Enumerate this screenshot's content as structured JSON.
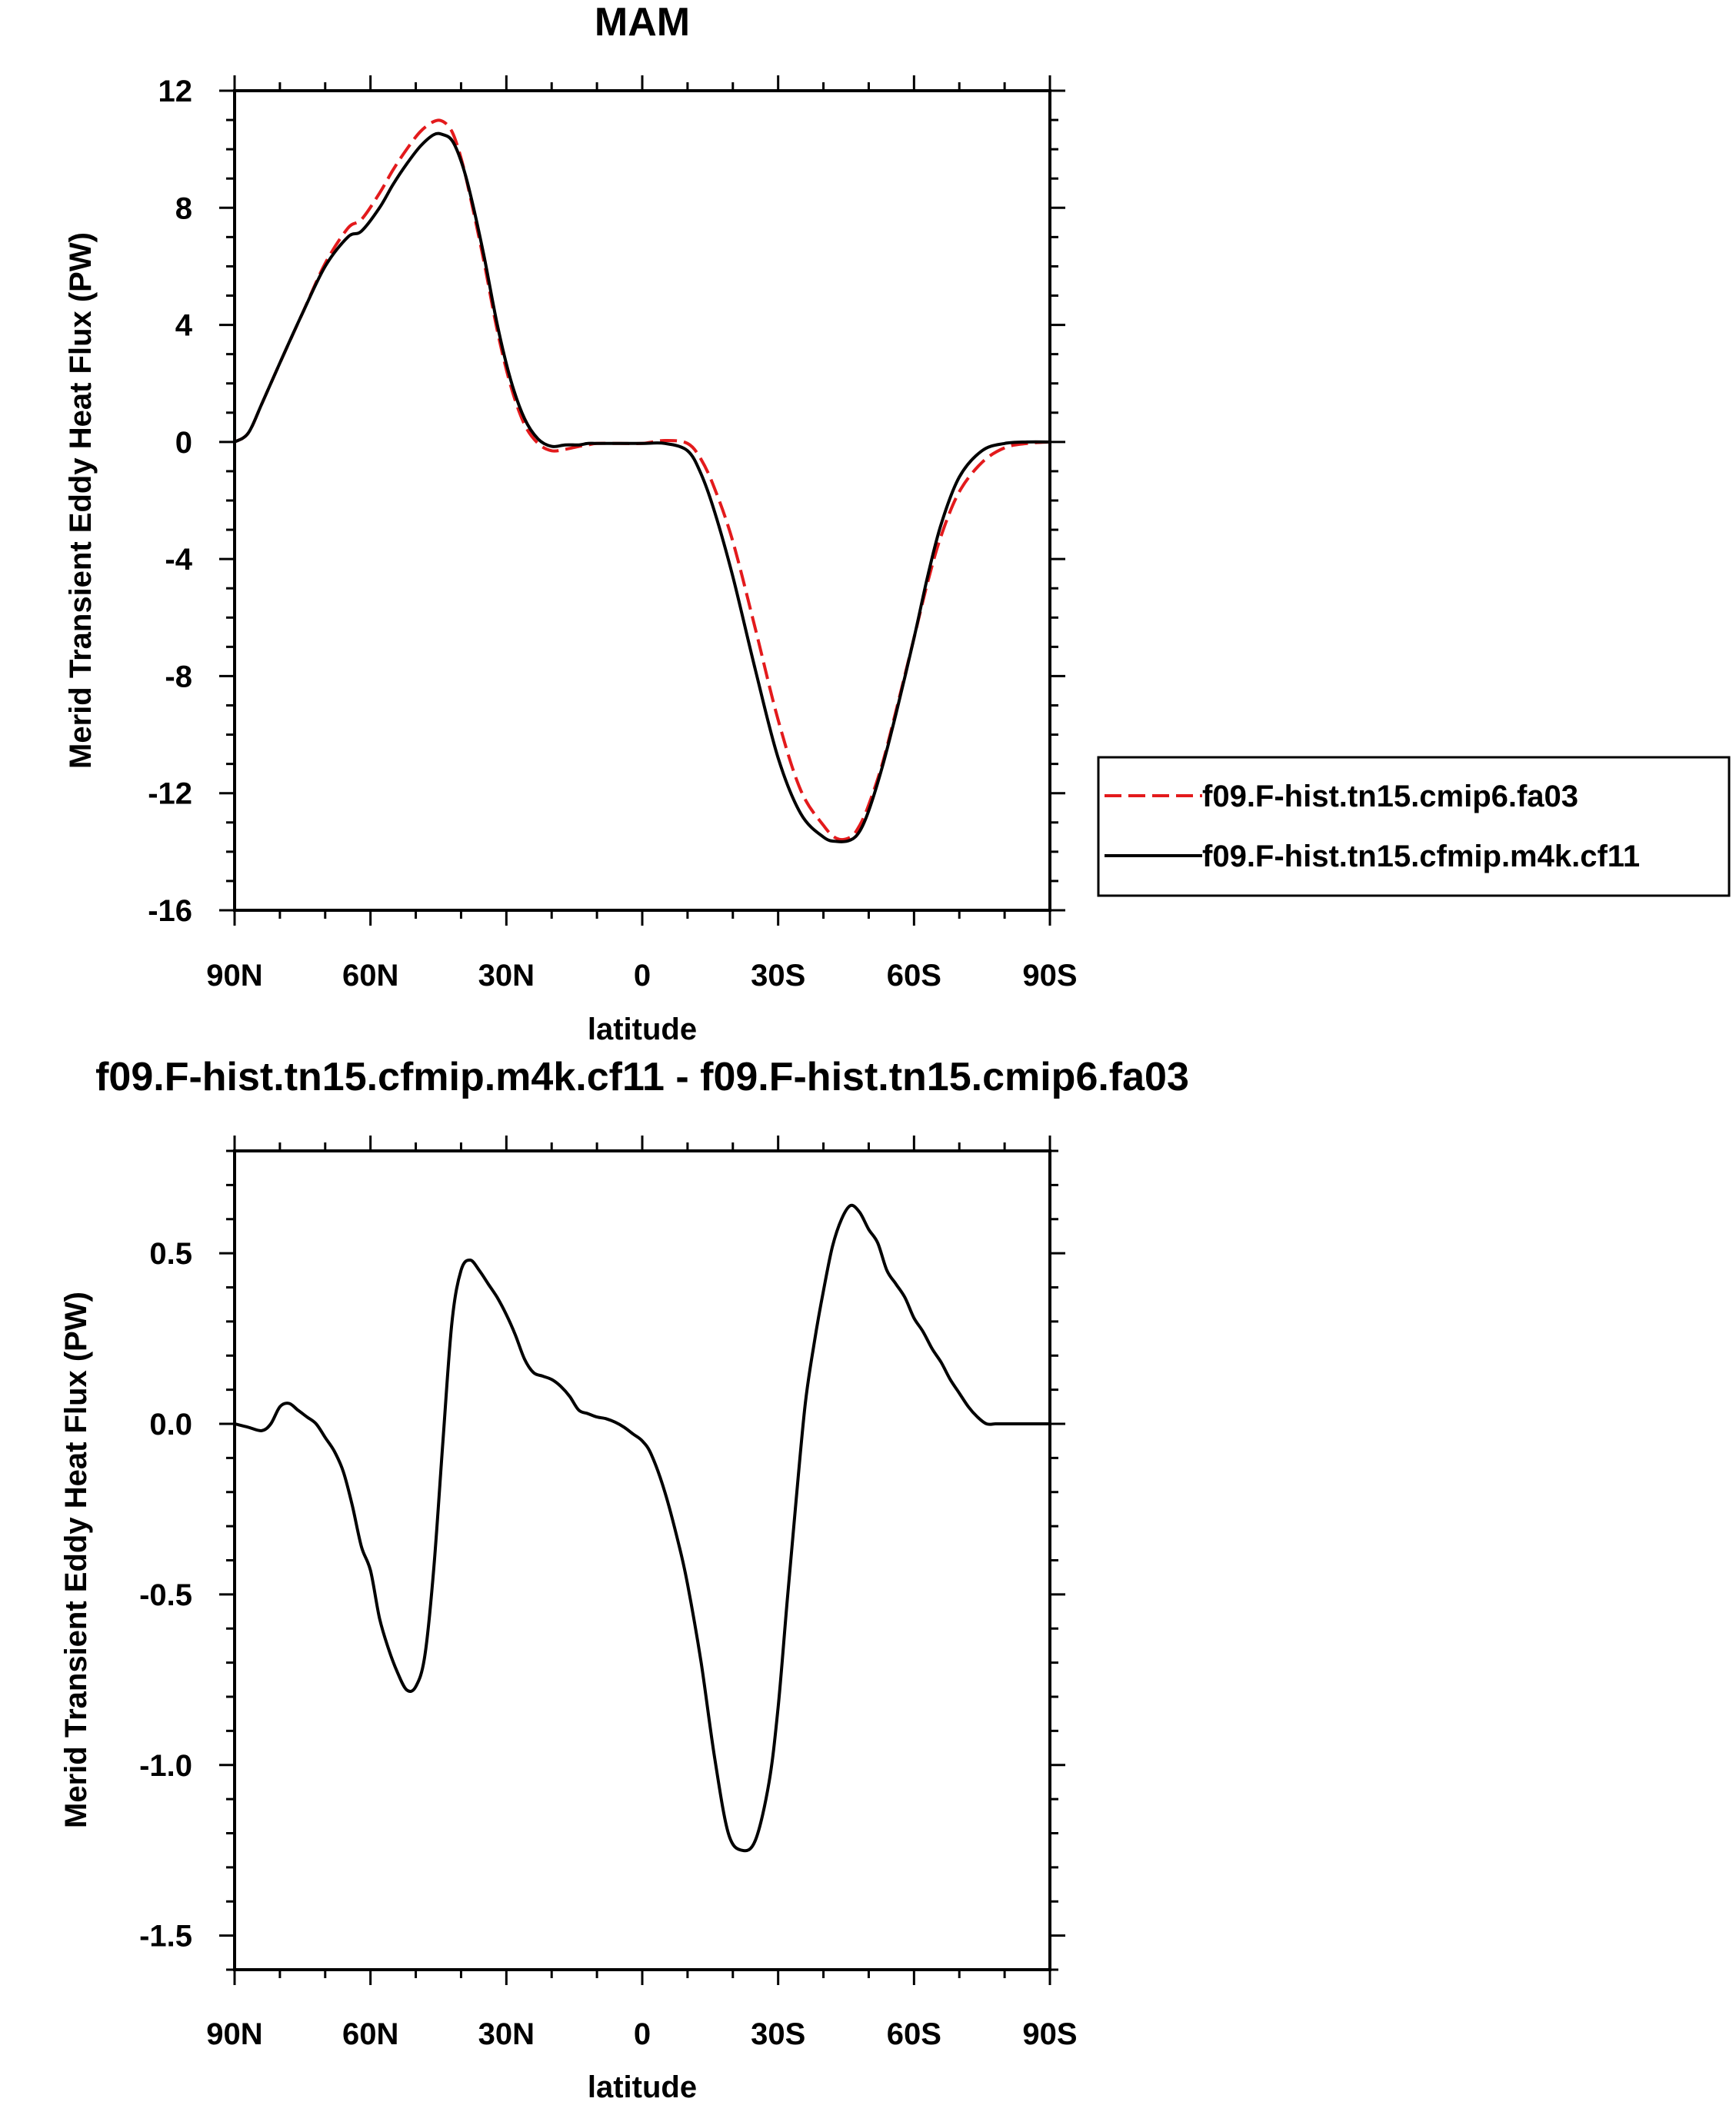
{
  "chart_data": [
    {
      "type": "line",
      "title": "MAM",
      "xlabel": "latitude",
      "ylabel": "Merid Transient Eddy Heat Flux (PW)",
      "xlim": [
        90,
        -90
      ],
      "ylim": [
        -16,
        12
      ],
      "x_ticks": [
        {
          "value": 90,
          "label": "90N"
        },
        {
          "value": 60,
          "label": "60N"
        },
        {
          "value": 30,
          "label": "30N"
        },
        {
          "value": 0,
          "label": "0"
        },
        {
          "value": -30,
          "label": "30S"
        },
        {
          "value": -60,
          "label": "60S"
        },
        {
          "value": -90,
          "label": "90S"
        }
      ],
      "y_ticks": [
        {
          "value": 12,
          "label": "12"
        },
        {
          "value": 8,
          "label": "8"
        },
        {
          "value": 4,
          "label": "4"
        },
        {
          "value": 0,
          "label": "0"
        },
        {
          "value": -4,
          "label": "-4"
        },
        {
          "value": -8,
          "label": "-8"
        },
        {
          "value": -12,
          "label": "-12"
        },
        {
          "value": -16,
          "label": "-16"
        }
      ],
      "grid": false,
      "legend_position": "right-outside",
      "series": [
        {
          "name": "f09.F-hist.tn15.cmip6.fa03",
          "color": "#e31a1c",
          "dash": "dashed",
          "x": [
            90,
            87,
            84,
            80,
            75,
            70,
            65,
            62,
            58,
            55,
            52,
            49,
            46,
            44,
            42,
            40,
            38,
            35,
            32,
            29,
            26,
            23,
            20,
            17,
            14,
            12,
            10,
            5,
            0,
            -5,
            -10,
            -13,
            -16,
            -20,
            -25,
            -30,
            -35,
            -40,
            -43,
            -46,
            -48,
            -50,
            -53,
            -56,
            -60,
            -63,
            -66,
            -70,
            -75,
            -80,
            -85,
            -90
          ],
          "y": [
            0,
            0.3,
            1.3,
            2.7,
            4.4,
            6.1,
            7.3,
            7.6,
            8.5,
            9.3,
            10.0,
            10.6,
            10.95,
            10.95,
            10.6,
            9.7,
            8.4,
            6.2,
            3.8,
            1.9,
            0.6,
            -0.05,
            -0.3,
            -0.25,
            -0.15,
            -0.1,
            -0.05,
            -0.05,
            -0.05,
            0.05,
            -0.05,
            -0.6,
            -1.6,
            -3.4,
            -6.4,
            -9.5,
            -11.9,
            -13.1,
            -13.55,
            -13.5,
            -13.1,
            -12.4,
            -11.0,
            -9.2,
            -6.7,
            -4.8,
            -3.2,
            -1.7,
            -0.7,
            -0.2,
            -0.05,
            0
          ]
        },
        {
          "name": "f09.F-hist.tn15.cfmip.m4k.cf11",
          "color": "#000000",
          "dash": "solid",
          "x": [
            90,
            87,
            84,
            80,
            75,
            70,
            65,
            62,
            58,
            55,
            52,
            49,
            46,
            44,
            42,
            40,
            38,
            35,
            32,
            29,
            26,
            23,
            20,
            17,
            14,
            12,
            10,
            5,
            0,
            -5,
            -10,
            -13,
            -16,
            -20,
            -25,
            -30,
            -35,
            -40,
            -43,
            -46,
            -48,
            -50,
            -53,
            -56,
            -60,
            -63,
            -66,
            -70,
            -75,
            -80,
            -85,
            -90
          ],
          "y": [
            0,
            0.3,
            1.3,
            2.7,
            4.4,
            6.0,
            7.0,
            7.2,
            8.0,
            8.8,
            9.5,
            10.1,
            10.5,
            10.5,
            10.3,
            9.6,
            8.5,
            6.4,
            4.0,
            2.1,
            0.8,
            0.1,
            -0.15,
            -0.1,
            -0.1,
            -0.05,
            -0.05,
            -0.05,
            -0.05,
            -0.05,
            -0.3,
            -1.1,
            -2.4,
            -4.6,
            -7.8,
            -10.8,
            -12.7,
            -13.5,
            -13.65,
            -13.6,
            -13.3,
            -12.6,
            -11.1,
            -9.3,
            -6.7,
            -4.6,
            -2.8,
            -1.2,
            -0.3,
            -0.05,
            0,
            0
          ]
        }
      ]
    },
    {
      "type": "line",
      "title": "f09.F-hist.tn15.cfmip.m4k.cf11 - f09.F-hist.tn15.cmip6.fa03",
      "xlabel": "latitude",
      "ylabel": "Merid Transient Eddy Heat Flux (PW)",
      "xlim": [
        90,
        -90
      ],
      "ylim": [
        -1.6,
        0.8
      ],
      "x_ticks": [
        {
          "value": 90,
          "label": "90N"
        },
        {
          "value": 60,
          "label": "60N"
        },
        {
          "value": 30,
          "label": "30N"
        },
        {
          "value": 0,
          "label": "0"
        },
        {
          "value": -30,
          "label": "30S"
        },
        {
          "value": -60,
          "label": "60S"
        },
        {
          "value": -90,
          "label": "90S"
        }
      ],
      "y_ticks": [
        {
          "value": 0.5,
          "label": "0.5"
        },
        {
          "value": 0.0,
          "label": "0.0"
        },
        {
          "value": -0.5,
          "label": "-0.5"
        },
        {
          "value": -1.0,
          "label": "-1.0"
        },
        {
          "value": -1.5,
          "label": "-1.5"
        }
      ],
      "grid": false,
      "series": [
        {
          "color": "#000000",
          "dash": "solid",
          "x": [
            90,
            87,
            84,
            82,
            80,
            78,
            76,
            74,
            72,
            70,
            68,
            66,
            64,
            62,
            60,
            58,
            56,
            54,
            52,
            50,
            48,
            46,
            44,
            42,
            40,
            38,
            36,
            34,
            32,
            30,
            28,
            26,
            24,
            22,
            20,
            18,
            16,
            14,
            12,
            10,
            8,
            6,
            4,
            2,
            0,
            -2,
            -5,
            -8,
            -10,
            -13,
            -16,
            -19,
            -22,
            -25,
            -28,
            -30,
            -32,
            -34,
            -36,
            -38,
            -40,
            -42,
            -44,
            -46,
            -48,
            -50,
            -52,
            -54,
            -56,
            -58,
            -60,
            -62,
            -64,
            -66,
            -68,
            -70,
            -72,
            -74,
            -76,
            -78,
            -80,
            -82,
            -84,
            -86,
            -88,
            -90
          ],
          "y": [
            0,
            -0.01,
            -0.02,
            0.0,
            0.05,
            0.06,
            0.04,
            0.02,
            0.0,
            -0.04,
            -0.08,
            -0.14,
            -0.24,
            -0.36,
            -0.43,
            -0.57,
            -0.66,
            -0.73,
            -0.78,
            -0.77,
            -0.68,
            -0.42,
            -0.05,
            0.3,
            0.45,
            0.48,
            0.45,
            0.41,
            0.37,
            0.32,
            0.26,
            0.19,
            0.15,
            0.14,
            0.13,
            0.11,
            0.08,
            0.04,
            0.03,
            0.02,
            0.015,
            0.005,
            -0.01,
            -0.03,
            -0.05,
            -0.09,
            -0.2,
            -0.35,
            -0.47,
            -0.7,
            -0.98,
            -1.2,
            -1.25,
            -1.22,
            -1.05,
            -0.83,
            -0.52,
            -0.22,
            0.06,
            0.24,
            0.39,
            0.52,
            0.6,
            0.64,
            0.62,
            0.57,
            0.53,
            0.45,
            0.41,
            0.37,
            0.31,
            0.27,
            0.22,
            0.18,
            0.13,
            0.09,
            0.05,
            0.02,
            0.0,
            0.0,
            0.0,
            0.0,
            0.0,
            0.0,
            0.0,
            0.0
          ]
        }
      ]
    }
  ]
}
